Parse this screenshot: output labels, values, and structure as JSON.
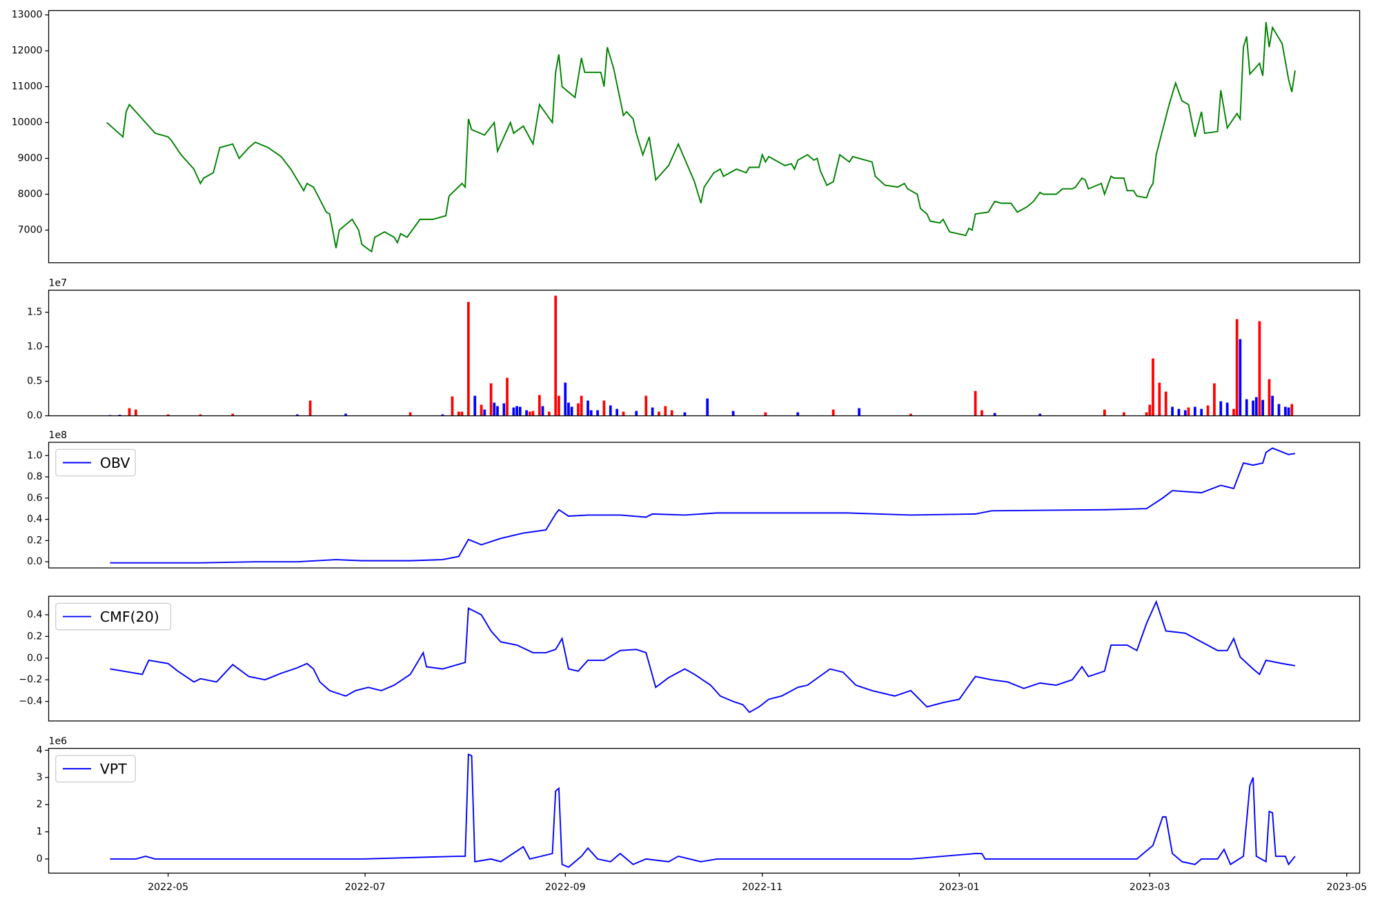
{
  "chart_data": [
    {
      "type": "line",
      "xlim": [
        -37,
        369
      ],
      "ylim": [
        6090,
        13120
      ],
      "yticks": [
        7000,
        8000,
        9000,
        10000,
        11000,
        12000,
        13000
      ],
      "x": [
        -19,
        -14,
        -13,
        -12,
        -8,
        -4,
        0,
        1,
        4,
        8,
        10,
        11,
        14,
        16,
        20,
        22,
        25,
        27,
        31,
        35,
        38,
        42,
        43,
        45,
        49,
        50,
        52,
        53,
        57,
        59,
        60,
        63,
        64,
        67,
        70,
        71,
        72,
        74,
        78,
        82,
        86,
        87,
        91,
        92,
        93,
        94,
        98,
        101,
        102,
        106,
        107,
        110,
        113,
        115,
        119,
        120,
        121,
        122,
        126,
        128,
        129,
        134,
        135,
        136,
        138,
        141,
        142,
        144,
        145,
        147,
        149,
        151,
        155,
        158,
        163,
        165,
        166,
        169,
        171,
        172,
        176,
        179,
        180,
        183,
        184,
        185,
        186,
        191,
        193,
        194,
        195,
        198,
        200,
        201,
        202,
        204,
        206,
        208,
        211,
        212,
        214,
        218,
        219,
        222,
        226,
        228,
        229,
        232,
        233,
        235,
        236,
        239,
        240,
        242,
        247,
        248,
        249,
        250,
        254,
        256,
        258,
        261,
        263,
        266,
        268,
        270,
        271,
        275,
        277,
        280,
        281,
        283,
        284,
        285,
        289,
        290,
        292,
        293,
        296,
        297,
        299,
        300,
        303,
        304,
        305,
        306,
        310,
        312,
        314,
        316,
        318,
        320,
        321,
        325,
        326,
        328,
        331,
        332,
        333,
        334,
        335,
        338,
        339,
        340,
        341,
        342,
        345,
        347,
        348,
        349
      ],
      "series": [
        {
          "color": "green",
          "values": [
            10000,
            9600,
            10300,
            10500,
            10100,
            9700,
            9600,
            9500,
            9100,
            8700,
            8300,
            8450,
            8600,
            9300,
            9400,
            9000,
            9300,
            9450,
            9300,
            9050,
            8700,
            8100,
            8300,
            8200,
            7500,
            7450,
            6500,
            7000,
            7300,
            7000,
            6600,
            6400,
            6800,
            6950,
            6800,
            6650,
            6900,
            6800,
            7300,
            7300,
            7400,
            7950,
            8300,
            8200,
            10100,
            9800,
            9650,
            10000,
            9200,
            10000,
            9700,
            9900,
            9400,
            10500,
            10000,
            11400,
            11900,
            11000,
            10700,
            11800,
            11400,
            11400,
            11000,
            12100,
            11500,
            10200,
            10300,
            10100,
            9700,
            9100,
            9600,
            8400,
            8800,
            9400,
            8350,
            7750,
            8200,
            8600,
            8700,
            8500,
            8700,
            8600,
            8750,
            8750,
            9100,
            8900,
            9050,
            8800,
            8850,
            8700,
            8950,
            9100,
            8950,
            9000,
            8650,
            8250,
            8350,
            9100,
            8900,
            9050,
            9000,
            8900,
            8500,
            8250,
            8200,
            8300,
            8150,
            8000,
            7600,
            7450,
            7250,
            7200,
            7300,
            6950,
            6850,
            7050,
            7000,
            7450,
            7500,
            7800,
            7750,
            7750,
            7500,
            7650,
            7800,
            8050,
            8000,
            8000,
            8150,
            8150,
            8200,
            8450,
            8400,
            8150,
            8300,
            8000,
            8500,
            8450,
            8450,
            8100,
            8100,
            7950,
            7900,
            8150,
            8300,
            9100,
            10500,
            11100,
            10600,
            10500,
            9600,
            10300,
            9700,
            9750,
            10900,
            9850,
            10250,
            10100,
            12100,
            12400,
            11350,
            11650,
            11300,
            12800,
            12100,
            12650,
            12200,
            11200,
            10850,
            11450
          ]
        }
      ]
    },
    {
      "type": "bar",
      "xlim": [
        -37,
        369
      ],
      "ylim": [
        0,
        1.82
      ],
      "y_offset_label": "1e7",
      "yticks": [
        {
          "value": 0,
          "label": "0.0"
        },
        0.5,
        {
          "value": 1,
          "label": "1.0"
        },
        1.5
      ],
      "x": [
        -18,
        -15,
        -12,
        -10,
        0,
        10,
        20,
        40,
        44,
        55,
        75,
        85,
        88,
        90,
        91,
        93,
        95,
        97,
        98,
        100,
        101,
        102,
        104,
        105,
        107,
        108,
        109,
        111,
        112,
        113,
        115,
        116,
        118,
        120,
        121,
        123,
        124,
        125,
        127,
        128,
        130,
        131,
        133,
        135,
        137,
        139,
        141,
        145,
        148,
        150,
        152,
        154,
        156,
        160,
        167,
        175,
        185,
        195,
        206,
        214,
        230,
        250,
        252,
        256,
        270,
        290,
        296,
        303,
        304,
        305,
        307,
        309,
        311,
        313,
        315,
        316,
        318,
        320,
        322,
        324,
        326,
        328,
        330,
        331,
        332,
        334,
        336,
        337,
        338,
        339,
        341,
        342,
        344,
        346,
        347,
        348
      ],
      "values": [
        0.01,
        0.015,
        0.11,
        0.09,
        0.02,
        0.02,
        0.03,
        0.02,
        0.22,
        0.03,
        0.05,
        0.02,
        0.28,
        0.06,
        0.06,
        1.65,
        0.29,
        0.16,
        0.09,
        0.47,
        0.19,
        0.14,
        0.18,
        0.55,
        0.12,
        0.14,
        0.13,
        0.08,
        0.06,
        0.07,
        0.3,
        0.14,
        0.06,
        1.74,
        0.29,
        0.48,
        0.19,
        0.13,
        0.18,
        0.29,
        0.22,
        0.08,
        0.08,
        0.22,
        0.15,
        0.1,
        0.06,
        0.07,
        0.29,
        0.12,
        0.06,
        0.14,
        0.08,
        0.05,
        0.25,
        0.07,
        0.05,
        0.05,
        0.09,
        0.11,
        0.03,
        0.36,
        0.08,
        0.04,
        0.03,
        0.09,
        0.05,
        0.05,
        0.16,
        0.83,
        0.48,
        0.35,
        0.13,
        0.1,
        0.08,
        0.12,
        0.13,
        0.1,
        0.15,
        0.47,
        0.21,
        0.19,
        0.1,
        1.4,
        1.11,
        0.24,
        0.22,
        0.27,
        1.37,
        0.23,
        0.53,
        0.29,
        0.17,
        0.13,
        0.12,
        0.17
      ],
      "colors": [
        "#0000ff",
        "#0000ff",
        "#ff0000",
        "#ff0000",
        "#ff0000",
        "#ff0000",
        "#ff0000",
        "#0000ff",
        "#ff0000",
        "#0000ff",
        "#ff0000",
        "#0000ff",
        "#ff0000",
        "#ff0000",
        "#ff0000",
        "#ff0000",
        "#0000ff",
        "#ff0000",
        "#0000ff",
        "#ff0000",
        "#0000ff",
        "#0000ff",
        "#0000ff",
        "#ff0000",
        "#0000ff",
        "#0000ff",
        "#0000ff",
        "#0000ff",
        "#ff0000",
        "#ff0000",
        "#ff0000",
        "#0000ff",
        "#ff0000",
        "#ff0000",
        "#ff0000",
        "#0000ff",
        "#0000ff",
        "#0000ff",
        "#ff0000",
        "#ff0000",
        "#0000ff",
        "#0000ff",
        "#0000ff",
        "#ff0000",
        "#0000ff",
        "#0000ff",
        "#ff0000",
        "#0000ff",
        "#ff0000",
        "#0000ff",
        "#ff0000",
        "#ff0000",
        "#ff0000",
        "#0000ff",
        "#0000ff",
        "#0000ff",
        "#ff0000",
        "#0000ff",
        "#ff0000",
        "#0000ff",
        "#ff0000",
        "#ff0000",
        "#ff0000",
        "#0000ff",
        "#0000ff",
        "#ff0000",
        "#ff0000",
        "#ff0000",
        "#ff0000",
        "#ff0000",
        "#ff0000",
        "#ff0000",
        "#0000ff",
        "#0000ff",
        "#0000ff",
        "#ff0000",
        "#0000ff",
        "#0000ff",
        "#ff0000",
        "#ff0000",
        "#0000ff",
        "#0000ff",
        "#ff0000",
        "#ff0000",
        "#0000ff",
        "#0000ff",
        "#0000ff",
        "#0000ff",
        "#ff0000",
        "#0000ff",
        "#ff0000",
        "#0000ff",
        "#0000ff",
        "#0000ff",
        "#0000ff",
        "#ff0000"
      ]
    },
    {
      "type": "line",
      "xlim": [
        -37,
        369
      ],
      "ylim": [
        -0.058,
        1.125
      ],
      "y_offset_label": "1e8",
      "yticks": [
        {
          "value": 0,
          "label": "0.0"
        },
        0.2,
        0.4,
        0.6,
        0.8,
        {
          "value": 1,
          "label": "1.0"
        }
      ],
      "x": [
        -18,
        0,
        10,
        27,
        40,
        52,
        60,
        75,
        85,
        90,
        93,
        97,
        103,
        110,
        117,
        120,
        121,
        124,
        130,
        140,
        148,
        150,
        160,
        170,
        190,
        210,
        230,
        250,
        255,
        290,
        303,
        308,
        311,
        320,
        326,
        330,
        333,
        336,
        339,
        340,
        342,
        347,
        349
      ],
      "series": [
        {
          "name": "OBV",
          "color": "blue",
          "values": [
            -0.01,
            -0.01,
            -0.01,
            0.0,
            0.0,
            0.02,
            0.01,
            0.01,
            0.02,
            0.05,
            0.21,
            0.16,
            0.22,
            0.27,
            0.3,
            0.45,
            0.49,
            0.43,
            0.44,
            0.44,
            0.42,
            0.45,
            0.44,
            0.46,
            0.46,
            0.46,
            0.44,
            0.45,
            0.48,
            0.49,
            0.5,
            0.6,
            0.67,
            0.65,
            0.72,
            0.69,
            0.93,
            0.91,
            0.93,
            1.03,
            1.07,
            1.01,
            1.02
          ]
        }
      ]
    },
    {
      "type": "line",
      "xlim": [
        -37,
        369
      ],
      "ylim": [
        -0.58,
        0.571
      ],
      "yticks": [
        {
          "value": -0.4,
          "label": "−0.4"
        },
        {
          "value": -0.2,
          "label": "−0.2"
        },
        {
          "value": 0,
          "label": "0.0"
        },
        0.2,
        0.4
      ],
      "x": [
        -18,
        -8,
        -6,
        0,
        3,
        8,
        10,
        15,
        20,
        25,
        30,
        35,
        40,
        43,
        45,
        47,
        50,
        55,
        58,
        62,
        66,
        70,
        75,
        79,
        80,
        85,
        92,
        93,
        97,
        100,
        103,
        108,
        113,
        117,
        120,
        122,
        124,
        127,
        130,
        135,
        140,
        145,
        148,
        151,
        155,
        160,
        163,
        168,
        171,
        175,
        178,
        180,
        183,
        186,
        190,
        195,
        198,
        205,
        209,
        213,
        218,
        225,
        230,
        235,
        240,
        245,
        250,
        255,
        260,
        265,
        270,
        275,
        280,
        283,
        285,
        290,
        292,
        297,
        300,
        303,
        306,
        309,
        315,
        320,
        325,
        328,
        330,
        332,
        336,
        338,
        340,
        345,
        349
      ],
      "series": [
        {
          "name": "CMF(20)",
          "color": "blue",
          "values": [
            -0.1,
            -0.15,
            -0.02,
            -0.05,
            -0.12,
            -0.22,
            -0.19,
            -0.22,
            -0.06,
            -0.17,
            -0.2,
            -0.14,
            -0.09,
            -0.05,
            -0.1,
            -0.22,
            -0.3,
            -0.35,
            -0.3,
            -0.27,
            -0.3,
            -0.25,
            -0.15,
            0.05,
            -0.08,
            -0.1,
            -0.04,
            0.46,
            0.4,
            0.25,
            0.15,
            0.12,
            0.05,
            0.05,
            0.08,
            0.18,
            -0.1,
            -0.12,
            -0.02,
            -0.02,
            0.07,
            0.08,
            0.05,
            -0.27,
            -0.18,
            -0.1,
            -0.15,
            -0.25,
            -0.35,
            -0.4,
            -0.43,
            -0.5,
            -0.45,
            -0.38,
            -0.35,
            -0.27,
            -0.25,
            -0.1,
            -0.13,
            -0.25,
            -0.3,
            -0.35,
            -0.3,
            -0.45,
            -0.41,
            -0.38,
            -0.17,
            -0.2,
            -0.22,
            -0.28,
            -0.23,
            -0.25,
            -0.2,
            -0.08,
            -0.17,
            -0.12,
            0.12,
            0.12,
            0.07,
            0.32,
            0.52,
            0.25,
            0.23,
            0.15,
            0.07,
            0.07,
            0.18,
            0.01,
            -0.1,
            -0.15,
            -0.02,
            -0.05,
            -0.07
          ]
        }
      ]
    },
    {
      "type": "line",
      "xlim": [
        -37,
        369
      ],
      "ylim": [
        -0.52,
        4.07
      ],
      "y_offset_label": "1e6",
      "yticks": [
        0,
        1,
        2,
        3,
        4
      ],
      "xticks": [
        {
          "value": 0,
          "label": "2022-05"
        },
        {
          "value": 61,
          "label": "2022-07"
        },
        {
          "value": 123,
          "label": "2022-09"
        },
        {
          "value": 184,
          "label": "2022-11"
        },
        {
          "value": 245,
          "label": "2023-01"
        },
        {
          "value": 304,
          "label": "2023-03"
        },
        {
          "value": 365,
          "label": "2023-05"
        }
      ],
      "x": [
        -18,
        -10,
        -7,
        -4,
        5,
        60,
        90,
        92,
        93,
        94,
        95,
        100,
        103,
        110,
        112,
        119,
        120,
        121,
        122,
        124,
        128,
        130,
        133,
        137,
        140,
        144,
        148,
        155,
        158,
        165,
        170,
        200,
        230,
        250,
        252,
        253,
        300,
        305,
        308,
        309,
        311,
        314,
        318,
        320,
        325,
        327,
        329,
        333,
        335,
        336,
        337,
        340,
        341,
        342,
        343,
        346,
        347,
        349
      ],
      "series": [
        {
          "name": "VPT",
          "color": "blue",
          "values": [
            0,
            0,
            0.1,
            0,
            0,
            0,
            0.1,
            0.1,
            3.85,
            3.8,
            -0.1,
            0,
            -0.1,
            0.45,
            0,
            0.2,
            2.5,
            2.6,
            -0.2,
            -0.3,
            0.1,
            0.4,
            0,
            -0.1,
            0.2,
            -0.2,
            0,
            -0.1,
            0.1,
            -0.1,
            0,
            0,
            0,
            0.2,
            0.2,
            0,
            0,
            0.5,
            1.55,
            1.55,
            0.2,
            -0.1,
            -0.2,
            0,
            0,
            0.35,
            -0.2,
            0.1,
            2.7,
            3.0,
            0.1,
            -0.1,
            1.75,
            1.7,
            0.1,
            0.1,
            -0.2,
            0.1
          ]
        }
      ]
    }
  ]
}
